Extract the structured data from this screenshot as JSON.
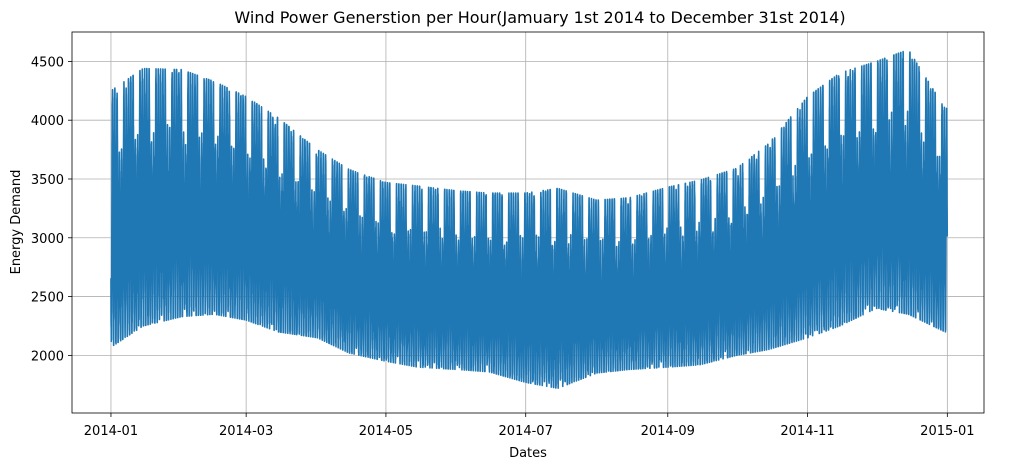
{
  "chart_data": {
    "type": "line",
    "title": "Wind Power Generstion per Hour(Jamuary 1st 2014 to December 31st 2014)",
    "xlabel": "Dates",
    "ylabel": "Energy Demand",
    "xlim": [
      "2013-12-15",
      "2015-01-17"
    ],
    "ylim": [
      1510,
      4750
    ],
    "grid": true,
    "series_color": "#1f77b4",
    "x_ticks": [
      "2014-01",
      "2014-03",
      "2014-05",
      "2014-07",
      "2014-09",
      "2014-11",
      "2015-01"
    ],
    "x_tick_dates": [
      "2014-01-01",
      "2014-03-01",
      "2014-05-01",
      "2014-07-01",
      "2014-09-01",
      "2014-11-01",
      "2015-01-01"
    ],
    "y_ticks": [
      2000,
      2500,
      3000,
      3500,
      4000,
      4500
    ],
    "series": [
      {
        "x_start": "2014-01-01",
        "x_end": "2014-12-31",
        "sampling": "hourly",
        "daily_max_profile": {
          "dates": [
            "2014-01-01",
            "2014-01-15",
            "2014-02-01",
            "2014-02-15",
            "2014-03-01",
            "2014-03-15",
            "2014-04-01",
            "2014-04-15",
            "2014-05-01",
            "2014-05-15",
            "2014-06-01",
            "2014-06-15",
            "2014-07-01",
            "2014-07-15",
            "2014-08-01",
            "2014-08-15",
            "2014-09-01",
            "2014-09-15",
            "2014-10-01",
            "2014-10-15",
            "2014-11-01",
            "2014-11-15",
            "2014-12-01",
            "2014-12-15",
            "2014-12-31"
          ],
          "values": [
            4250,
            4440,
            4430,
            4330,
            4200,
            4020,
            3750,
            3580,
            3470,
            3440,
            3400,
            3380,
            3380,
            3420,
            3320,
            3340,
            3430,
            3490,
            3590,
            3800,
            4200,
            4400,
            4500,
            4600,
            4100
          ]
        },
        "daily_min_profile": {
          "dates": [
            "2014-01-01",
            "2014-01-15",
            "2014-02-01",
            "2014-02-15",
            "2014-03-01",
            "2014-03-15",
            "2014-04-01",
            "2014-04-15",
            "2014-05-01",
            "2014-05-15",
            "2014-06-01",
            "2014-06-15",
            "2014-07-01",
            "2014-07-15",
            "2014-08-01",
            "2014-08-15",
            "2014-09-01",
            "2014-09-15",
            "2014-10-01",
            "2014-10-15",
            "2014-11-01",
            "2014-11-15",
            "2014-12-01",
            "2014-12-15",
            "2014-12-31"
          ],
          "values": [
            2070,
            2250,
            2330,
            2350,
            2300,
            2200,
            2150,
            2020,
            1950,
            1900,
            1880,
            1860,
            1770,
            1720,
            1850,
            1880,
            1900,
            1920,
            2000,
            2050,
            2150,
            2250,
            2400,
            2350,
            2200
          ]
        }
      }
    ]
  }
}
